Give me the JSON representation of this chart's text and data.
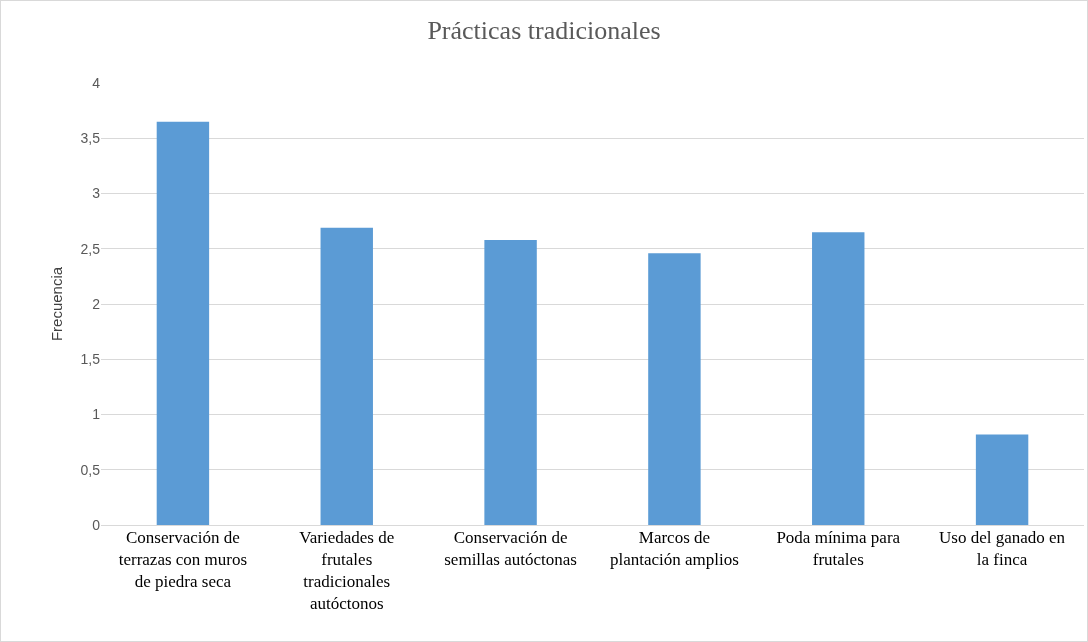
{
  "chart_data": {
    "type": "bar",
    "title": "Prácticas tradicionales",
    "ylabel": "Frecuencia",
    "categories": [
      "Conservación de terrazas con muros de piedra seca",
      "Variedades de frutales tradicionales autóctonos",
      "Conservación de semillas autóctonas",
      "Marcos de plantación amplios",
      "Poda mínima para frutales",
      "Uso del ganado en la finca"
    ],
    "values": [
      3.65,
      2.69,
      2.58,
      2.46,
      2.65,
      0.82
    ],
    "color": "#5b9bd5",
    "ylim": [
      0,
      4
    ],
    "yticks": [
      0,
      {
        "value": 0.5,
        "label": "0,5"
      },
      1,
      {
        "value": 1.5,
        "label": "1,5"
      },
      2,
      {
        "value": 2.5,
        "label": "2,5"
      },
      3,
      {
        "value": 3.5,
        "label": "3,5"
      },
      4
    ],
    "grid": "y"
  }
}
